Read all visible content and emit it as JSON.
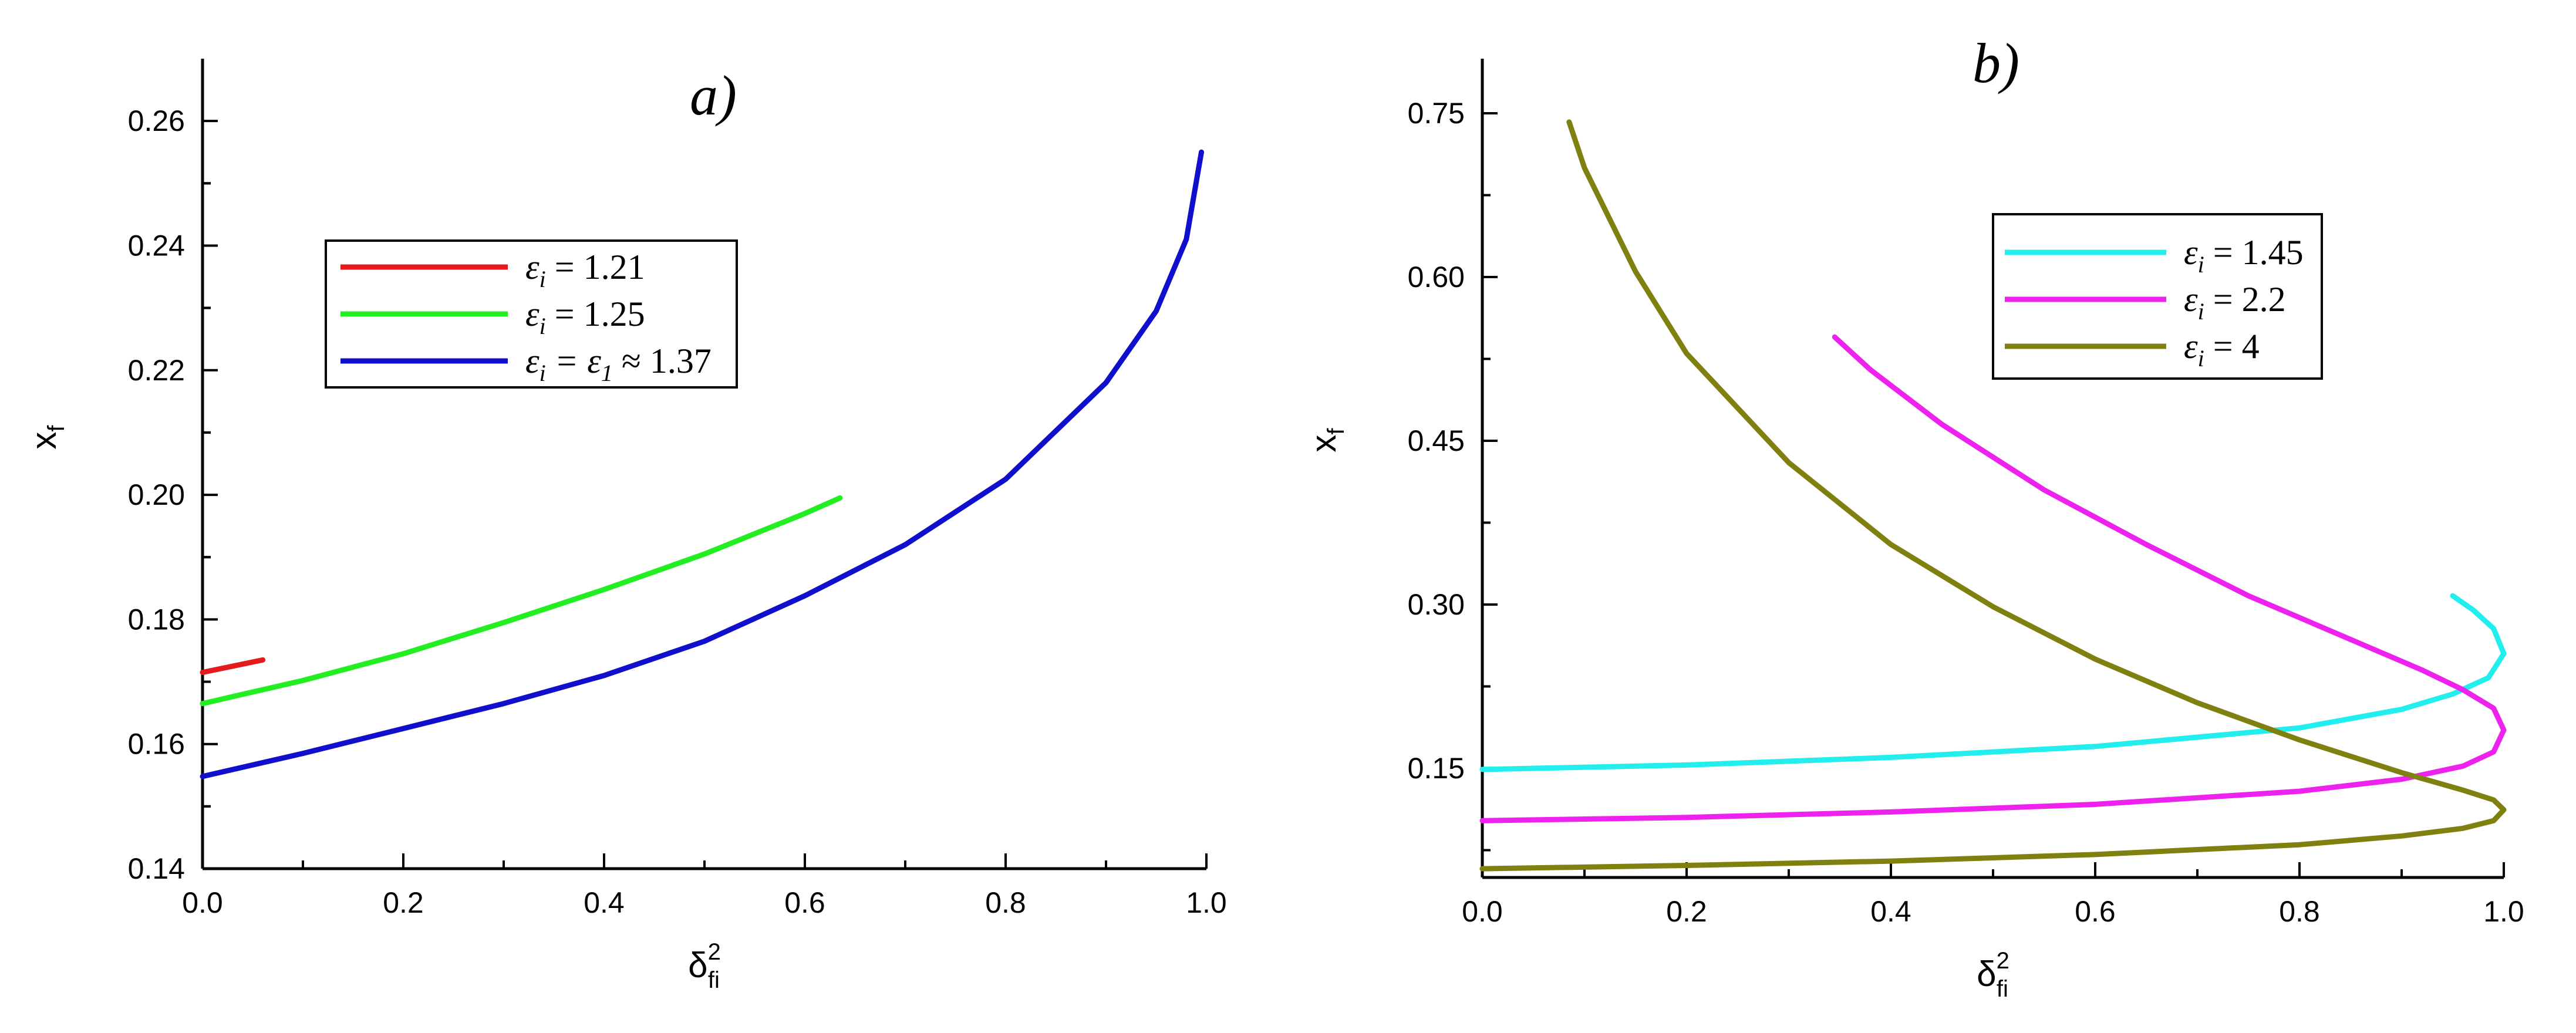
{
  "chart_data": [
    {
      "type": "line",
      "title": "a)",
      "xlabel": {
        "main": "δ",
        "sub": "fi",
        "sup": "2"
      },
      "ylabel": {
        "main": "x",
        "sub": "f"
      },
      "xlim": [
        0.0,
        1.0
      ],
      "ylim": [
        0.14,
        0.27
      ],
      "xticks": [
        {
          "v": 0.0,
          "label": "0.0"
        },
        {
          "v": 0.2,
          "label": "0.2"
        },
        {
          "v": 0.4,
          "label": "0.4"
        },
        {
          "v": 0.6,
          "label": "0.6"
        },
        {
          "v": 0.8,
          "label": "0.8"
        },
        {
          "v": 1.0,
          "label": "1.0"
        }
      ],
      "yticks": [
        {
          "v": 0.14,
          "label": "0.14"
        },
        {
          "v": 0.16,
          "label": "0.16"
        },
        {
          "v": 0.18,
          "label": "0.18"
        },
        {
          "v": 0.2,
          "label": "0.20"
        },
        {
          "v": 0.22,
          "label": "0.22"
        },
        {
          "v": 0.24,
          "label": "0.24"
        },
        {
          "v": 0.26,
          "label": "0.26"
        }
      ],
      "legend_position": "upper-left",
      "series": [
        {
          "name": "1.21",
          "legend": {
            "lhs": "ε",
            "sub": "i",
            "rest": " = 1.21"
          },
          "color": "#e41a1c",
          "x": [
            0.0,
            0.03,
            0.06
          ],
          "y": [
            0.1715,
            0.1725,
            0.1735
          ]
        },
        {
          "name": "1.25",
          "legend": {
            "lhs": "ε",
            "sub": "i",
            "rest": " = 1.25"
          },
          "color": "#22ee22",
          "x": [
            0.0,
            0.1,
            0.2,
            0.3,
            0.4,
            0.5,
            0.6,
            0.635
          ],
          "y": [
            0.1665,
            0.1702,
            0.1745,
            0.1795,
            0.1848,
            0.1905,
            0.197,
            0.1995
          ]
        },
        {
          "name": "1.37",
          "legend": {
            "lhs": "ε",
            "sub": "i",
            "rest": " = ε",
            "sub2": "1",
            "rest2": " ≈ 1.37"
          },
          "color": "#1010cc",
          "x": [
            0.0,
            0.1,
            0.2,
            0.3,
            0.4,
            0.5,
            0.6,
            0.7,
            0.8,
            0.9,
            0.95,
            0.98,
            0.995
          ],
          "y": [
            0.1548,
            0.1585,
            0.1625,
            0.1665,
            0.171,
            0.1765,
            0.1838,
            0.192,
            0.2025,
            0.218,
            0.2295,
            0.241,
            0.255
          ]
        }
      ]
    },
    {
      "type": "line",
      "title": "b)",
      "xlabel": {
        "main": "δ",
        "sub": "fi",
        "sup": "2"
      },
      "ylabel": {
        "main": "x",
        "sub": "f"
      },
      "xlim": [
        0.0,
        1.0
      ],
      "ylim": [
        0.05,
        0.8
      ],
      "xticks": [
        {
          "v": 0.0,
          "label": "0.0"
        },
        {
          "v": 0.2,
          "label": "0.2"
        },
        {
          "v": 0.4,
          "label": "0.4"
        },
        {
          "v": 0.6,
          "label": "0.6"
        },
        {
          "v": 0.8,
          "label": "0.8"
        },
        {
          "v": 1.0,
          "label": "1.0"
        }
      ],
      "yticks": [
        {
          "v": 0.15,
          "label": "0.15"
        },
        {
          "v": 0.3,
          "label": "0.30"
        },
        {
          "v": 0.45,
          "label": "0.45"
        },
        {
          "v": 0.6,
          "label": "0.60"
        },
        {
          "v": 0.75,
          "label": "0.75"
        }
      ],
      "legend_position": "upper-right",
      "series": [
        {
          "name": "1.45",
          "legend": {
            "lhs": "ε",
            "sub": "i",
            "rest": " = 1.45"
          },
          "color": "#22eeee",
          "x": [
            0.0,
            0.2,
            0.4,
            0.6,
            0.8,
            0.9,
            0.95,
            0.985,
            1.0,
            0.99,
            0.97,
            0.95
          ],
          "y": [
            0.149,
            0.153,
            0.16,
            0.17,
            0.187,
            0.204,
            0.218,
            0.233,
            0.255,
            0.278,
            0.295,
            0.308
          ]
        },
        {
          "name": "2.2",
          "legend": {
            "lhs": "ε",
            "sub": "i",
            "rest": " = 2.2"
          },
          "color": "#ee22ee",
          "x": [
            0.0,
            0.2,
            0.4,
            0.6,
            0.8,
            0.9,
            0.96,
            0.99,
            1.0,
            0.99,
            0.96,
            0.92,
            0.85,
            0.75,
            0.65,
            0.55,
            0.45,
            0.38,
            0.345
          ],
          "y": [
            0.102,
            0.105,
            0.11,
            0.117,
            0.129,
            0.14,
            0.152,
            0.165,
            0.185,
            0.205,
            0.222,
            0.24,
            0.268,
            0.308,
            0.355,
            0.405,
            0.465,
            0.515,
            0.545
          ]
        },
        {
          "name": "4",
          "legend": {
            "lhs": "ε",
            "sub": "i",
            "rest": " = 4"
          },
          "color": "#808010",
          "x": [
            0.0,
            0.2,
            0.4,
            0.6,
            0.8,
            0.9,
            0.96,
            0.99,
            1.0,
            0.99,
            0.96,
            0.9,
            0.8,
            0.7,
            0.6,
            0.5,
            0.4,
            0.3,
            0.2,
            0.15,
            0.1,
            0.085
          ],
          "y": [
            0.058,
            0.061,
            0.065,
            0.071,
            0.08,
            0.088,
            0.095,
            0.102,
            0.112,
            0.121,
            0.13,
            0.146,
            0.176,
            0.21,
            0.25,
            0.298,
            0.355,
            0.43,
            0.53,
            0.605,
            0.7,
            0.742
          ]
        }
      ]
    }
  ]
}
